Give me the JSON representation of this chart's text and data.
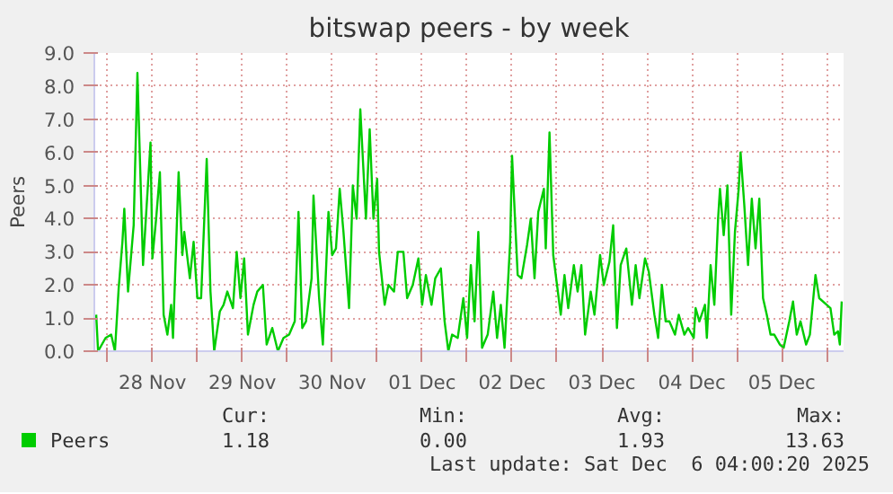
{
  "chart_data": {
    "type": "line",
    "title": "bitswap peers - by week",
    "ylabel": "Peers",
    "x": [
      "2025-11-27T21:00",
      "2025-11-27T21:30",
      "2025-11-27T23:30",
      "2025-11-28T01:00",
      "2025-11-28T02:00",
      "2025-11-28T03:00",
      "2025-11-28T04:00",
      "2025-11-28T04:30",
      "2025-11-28T05:30",
      "2025-11-28T07:00",
      "2025-11-28T08:00",
      "2025-11-28T09:30",
      "2025-11-28T11:30",
      "2025-11-28T12:00",
      "2025-11-28T13:00",
      "2025-11-28T14:00",
      "2025-11-28T15:00",
      "2025-11-28T16:00",
      "2025-11-28T17:00",
      "2025-11-28T17:30",
      "2025-11-28T19:00",
      "2025-11-28T20:00",
      "2025-11-28T20:30",
      "2025-11-28T22:00",
      "2025-11-28T23:00",
      "2025-11-29T00:00",
      "2025-11-29T01:00",
      "2025-11-29T02:30",
      "2025-11-29T03:30",
      "2025-11-29T04:30",
      "2025-11-29T06:00",
      "2025-11-29T07:00",
      "2025-11-29T08:00",
      "2025-11-29T09:30",
      "2025-11-29T10:30",
      "2025-11-29T11:30",
      "2025-11-29T12:30",
      "2025-11-29T13:30",
      "2025-11-29T15:00",
      "2025-11-29T16:00",
      "2025-11-29T17:30",
      "2025-11-29T18:30",
      "2025-11-29T20:00",
      "2025-11-29T21:30",
      "2025-11-29T23:00",
      "2025-11-30T00:30",
      "2025-11-30T02:00",
      "2025-11-30T03:00",
      "2025-11-30T04:00",
      "2025-11-30T05:00",
      "2025-11-30T06:30",
      "2025-11-30T07:00",
      "2025-11-30T08:30",
      "2025-11-30T09:30",
      "2025-11-30T11:00",
      "2025-11-30T12:00",
      "2025-11-30T13:00",
      "2025-11-30T14:00",
      "2025-11-30T15:00",
      "2025-11-30T16:30",
      "2025-11-30T17:30",
      "2025-11-30T18:30",
      "2025-11-30T19:30",
      "2025-11-30T21:00",
      "2025-11-30T22:00",
      "2025-11-30T23:00",
      "2025-12-01T00:00",
      "2025-12-01T00:30",
      "2025-12-01T02:00",
      "2025-12-01T03:00",
      "2025-12-01T04:30",
      "2025-12-01T05:30",
      "2025-12-01T07:00",
      "2025-12-01T08:00",
      "2025-12-01T09:30",
      "2025-12-01T11:00",
      "2025-12-01T12:00",
      "2025-12-01T13:00",
      "2025-12-01T14:30",
      "2025-12-01T15:30",
      "2025-12-01T17:00",
      "2025-12-01T18:00",
      "2025-12-01T19:00",
      "2025-12-01T20:00",
      "2025-12-01T21:30",
      "2025-12-01T23:00",
      "2025-12-02T00:00",
      "2025-12-02T01:00",
      "2025-12-02T02:00",
      "2025-12-02T03:00",
      "2025-12-02T04:00",
      "2025-12-02T05:30",
      "2025-12-02T07:00",
      "2025-12-02T08:00",
      "2025-12-02T09:00",
      "2025-12-02T10:00",
      "2025-12-02T11:30",
      "2025-12-02T12:00",
      "2025-12-02T13:30",
      "2025-12-02T14:30",
      "2025-12-02T16:00",
      "2025-12-02T17:00",
      "2025-12-02T18:00",
      "2025-12-02T19:00",
      "2025-12-02T20:30",
      "2025-12-02T21:00",
      "2025-12-02T22:00",
      "2025-12-02T23:00",
      "2025-12-03T00:00",
      "2025-12-03T01:00",
      "2025-12-03T02:00",
      "2025-12-03T03:00",
      "2025-12-03T04:30",
      "2025-12-03T05:30",
      "2025-12-03T06:30",
      "2025-12-03T07:30",
      "2025-12-03T09:00",
      "2025-12-03T10:00",
      "2025-12-03T11:30",
      "2025-12-03T12:30",
      "2025-12-03T14:00",
      "2025-12-03T15:00",
      "2025-12-03T16:00",
      "2025-12-03T17:00",
      "2025-12-03T18:30",
      "2025-12-03T20:00",
      "2025-12-03T21:00",
      "2025-12-03T22:00",
      "2025-12-03T23:30",
      "2025-12-04T00:30",
      "2025-12-04T02:00",
      "2025-12-04T03:00",
      "2025-12-04T04:00",
      "2025-12-04T05:00",
      "2025-12-04T06:00",
      "2025-12-04T07:30",
      "2025-12-04T08:30",
      "2025-12-04T10:00",
      "2025-12-04T11:00",
      "2025-12-04T12:30",
      "2025-12-04T13:00",
      "2025-12-04T14:00",
      "2025-12-04T15:30",
      "2025-12-04T16:00",
      "2025-12-04T17:00",
      "2025-12-04T18:00",
      "2025-12-04T19:00",
      "2025-12-04T19:30",
      "2025-12-04T20:30",
      "2025-12-04T21:30",
      "2025-12-04T22:30",
      "2025-12-04T23:30",
      "2025-12-05T00:30",
      "2025-12-05T01:00",
      "2025-12-05T02:00",
      "2025-12-05T03:00",
      "2025-12-05T04:00",
      "2025-12-05T05:00",
      "2025-12-05T06:00",
      "2025-12-05T07:00",
      "2025-12-05T08:00",
      "2025-12-05T09:00",
      "2025-12-05T10:00",
      "2025-12-05T11:30",
      "2025-12-05T12:30",
      "2025-12-05T14:00",
      "2025-12-05T15:00",
      "2025-12-05T16:00",
      "2025-12-05T17:00",
      "2025-12-05T18:30",
      "2025-12-05T19:30",
      "2025-12-05T21:00",
      "2025-12-05T22:00",
      "2025-12-06T00:00",
      "2025-12-06T01:00",
      "2025-12-06T02:00",
      "2025-12-06T03:00",
      "2025-12-06T03:30",
      "2025-12-06T04:00"
    ],
    "series": [
      {
        "name": "Peers",
        "color": "#00cc00",
        "values": [
          1.1,
          0.0,
          0.4,
          0.5,
          0.0,
          1.9,
          3.3,
          4.3,
          1.8,
          3.8,
          8.4,
          2.6,
          6.3,
          2.8,
          4.0,
          5.4,
          1.1,
          0.5,
          1.4,
          0.4,
          5.4,
          2.9,
          3.6,
          2.2,
          3.3,
          1.6,
          1.6,
          5.8,
          1.8,
          0.0,
          1.2,
          1.4,
          1.8,
          1.3,
          3.0,
          1.6,
          2.8,
          0.5,
          1.4,
          1.8,
          2.0,
          0.2,
          0.7,
          0.0,
          0.4,
          0.5,
          0.9,
          4.2,
          0.7,
          0.9,
          2.2,
          4.7,
          1.6,
          0.2,
          4.2,
          2.9,
          3.1,
          4.9,
          3.6,
          1.3,
          5.0,
          4.0,
          7.3,
          4.0,
          6.7,
          4.0,
          5.2,
          3.0,
          1.4,
          2.0,
          1.8,
          3.0,
          3.0,
          1.6,
          2.0,
          2.8,
          1.4,
          2.3,
          1.4,
          2.2,
          2.5,
          0.9,
          0.0,
          0.5,
          0.4,
          1.6,
          0.4,
          2.6,
          0.9,
          3.6,
          0.1,
          0.5,
          1.8,
          0.4,
          1.4,
          0.1,
          3.3,
          5.9,
          2.3,
          2.2,
          3.2,
          4.0,
          2.2,
          4.2,
          4.9,
          3.1,
          6.6,
          2.9,
          2.0,
          1.1,
          2.3,
          1.3,
          2.6,
          1.8,
          2.6,
          0.5,
          1.8,
          1.1,
          2.9,
          2.0,
          2.7,
          3.8,
          0.7,
          2.6,
          3.1,
          1.4,
          2.6,
          1.6,
          2.8,
          2.4,
          1.1,
          0.4,
          2.0,
          0.9,
          0.9,
          0.5,
          1.1,
          0.5,
          0.7,
          0.4,
          1.3,
          0.9,
          1.4,
          0.4,
          2.6,
          1.4,
          4.0,
          4.9,
          3.5,
          5.0,
          1.1,
          3.6,
          4.9,
          6.0,
          4.4,
          2.6,
          4.6,
          3.1,
          4.6,
          1.6,
          1.1,
          0.5,
          0.5,
          0.2,
          0.1,
          0.9,
          1.5,
          0.5,
          0.9,
          0.2,
          0.5,
          2.3,
          1.6,
          1.4,
          1.3,
          0.5,
          0.6,
          0.2,
          1.5
        ]
      }
    ],
    "xlim": [
      "2025-11-27T20:30",
      "2025-12-06T04:30"
    ],
    "xticks": [
      {
        "value": "2025-11-28T12:00",
        "label": "28 Nov"
      },
      {
        "value": "2025-11-29T12:00",
        "label": "29 Nov"
      },
      {
        "value": "2025-11-30T12:00",
        "label": "30 Nov"
      },
      {
        "value": "2025-12-01T12:00",
        "label": "01 Dec"
      },
      {
        "value": "2025-12-02T12:00",
        "label": "02 Dec"
      },
      {
        "value": "2025-12-03T12:00",
        "label": "03 Dec"
      },
      {
        "value": "2025-12-04T12:00",
        "label": "04 Dec"
      },
      {
        "value": "2025-12-05T12:00",
        "label": "05 Dec"
      },
      {
        "value": "2025-11-28T00:00",
        "label": null
      },
      {
        "value": "2025-11-29T00:00",
        "label": null
      },
      {
        "value": "2025-11-30T00:00",
        "label": null
      },
      {
        "value": "2025-12-01T00:00",
        "label": null
      },
      {
        "value": "2025-12-02T00:00",
        "label": null
      },
      {
        "value": "2025-12-03T00:00",
        "label": null
      },
      {
        "value": "2025-12-04T00:00",
        "label": null
      },
      {
        "value": "2025-12-05T00:00",
        "label": null
      },
      {
        "value": "2025-12-06T00:00",
        "label": null
      }
    ],
    "ylim": [
      0,
      9
    ],
    "yticks": [
      {
        "value": 0,
        "label": "0.0"
      },
      {
        "value": 1,
        "label": "1.0"
      },
      {
        "value": 2,
        "label": "2.0"
      },
      {
        "value": 3,
        "label": "3.0"
      },
      {
        "value": 4,
        "label": "4.0"
      },
      {
        "value": 5,
        "label": "5.0"
      },
      {
        "value": 6,
        "label": "6.0"
      },
      {
        "value": 7,
        "label": "7.0"
      },
      {
        "value": 8,
        "label": "8.0"
      },
      {
        "value": 9,
        "label": "9.0"
      }
    ],
    "grid": true,
    "legend": "bottom",
    "marker": "none",
    "line_style": "solid",
    "annotations": [
      "Cur:",
      "Min:",
      "Avg:",
      "Max:",
      "1.18",
      "0.00",
      "1.93",
      "13.63",
      "Last update: Sat Dec  6 04:00:20 2025"
    ]
  }
}
